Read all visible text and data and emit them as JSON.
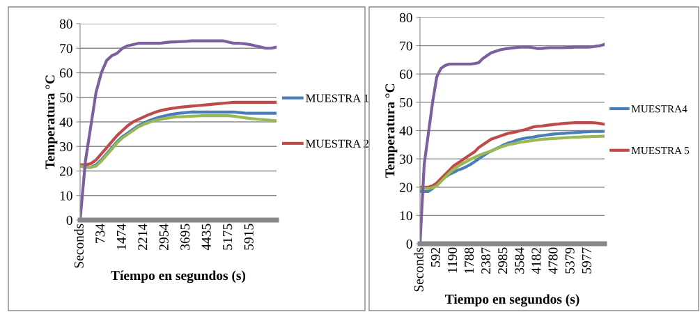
{
  "chart_data": [
    {
      "type": "line",
      "xlabel": "Tíempo en segundos (s)",
      "ylabel": "Temperatura °C",
      "ylim": [
        0,
        80
      ],
      "yticks": [
        0,
        10,
        20,
        30,
        40,
        50,
        60,
        70,
        80
      ],
      "grid": "y",
      "legend": "right",
      "categories": [
        "Seconds",
        null,
        null,
        null,
        "734",
        null,
        null,
        null,
        "1474",
        null,
        null,
        null,
        "2214",
        null,
        null,
        null,
        "2954",
        null,
        null,
        null,
        "3695",
        null,
        null,
        null,
        "4435",
        null,
        null,
        null,
        "5175",
        null,
        null,
        null,
        "5915",
        null,
        null,
        null,
        null,
        null
      ],
      "series": [
        {
          "name": "MUESTRA 1",
          "color": "#4a7ebb",
          "values": [
            22,
            21.5,
            21.5,
            22.5,
            24.5,
            27,
            29.5,
            32,
            34,
            35.5,
            37,
            38.5,
            39.5,
            40.5,
            41.3,
            42,
            42.5,
            43,
            43.3,
            43.6,
            43.8,
            44,
            44,
            44,
            44,
            44,
            44,
            44,
            44,
            44,
            43.8,
            43.6,
            43.5,
            43.5,
            43.5,
            43.5,
            43.5,
            43.5
          ]
        },
        {
          "name": "MUESTRA 2",
          "color": "#be4b48",
          "values": [
            22.5,
            22.5,
            23,
            24.5,
            27,
            29.5,
            32,
            34.5,
            36.5,
            38.5,
            40,
            41,
            42,
            43,
            43.8,
            44.5,
            45,
            45.4,
            45.7,
            46,
            46.2,
            46.4,
            46.6,
            46.8,
            47,
            47.2,
            47.4,
            47.6,
            47.8,
            48,
            48,
            48,
            48,
            48,
            48,
            48,
            48,
            48
          ]
        },
        {
          "color": "#98b954",
          "values": [
            22,
            21.5,
            21.5,
            22,
            24,
            26.5,
            29,
            31.5,
            33.5,
            35,
            36.5,
            38,
            39,
            39.8,
            40.5,
            41,
            41.4,
            41.7,
            42,
            42.1,
            42.2,
            42.3,
            42.4,
            42.5,
            42.5,
            42.5,
            42.5,
            42.5,
            42.5,
            42.3,
            42,
            41.7,
            41.4,
            41.2,
            41,
            40.8,
            40.6,
            40.5
          ]
        },
        {
          "color": "#7d5fa0",
          "values": [
            0,
            24,
            38,
            52,
            60,
            65,
            67,
            68,
            70,
            71,
            71.5,
            72,
            72,
            72,
            72,
            72,
            72.3,
            72.5,
            72.6,
            72.7,
            72.8,
            73,
            73,
            73,
            73,
            73,
            73,
            73,
            72.5,
            72,
            72,
            71.8,
            71.5,
            71,
            70.5,
            70,
            70,
            70.5
          ]
        }
      ]
    },
    {
      "type": "line",
      "xlabel": "Tiempo en segundos (s)",
      "ylabel": "Temperatura °C",
      "ylim": [
        0,
        80
      ],
      "yticks": [
        0,
        10,
        20,
        30,
        40,
        50,
        60,
        70,
        80
      ],
      "grid": "y",
      "legend": "right",
      "categories": [
        "Seconds",
        null,
        null,
        null,
        "592",
        null,
        null,
        null,
        "1190",
        null,
        null,
        null,
        "1788",
        null,
        null,
        null,
        "2387",
        null,
        null,
        null,
        "2985",
        null,
        null,
        null,
        "3584",
        null,
        null,
        null,
        "4182",
        null,
        null,
        null,
        "4780",
        null,
        null,
        null,
        "5379",
        null,
        null,
        null,
        "5977",
        null,
        null,
        null,
        null
      ],
      "series": [
        {
          "name": "MUESTRA4",
          "color": "#4a7ebb",
          "values": [
            18.5,
            18.5,
            18.5,
            19.5,
            21,
            22.5,
            23.5,
            24.5,
            25.2,
            26,
            26.5,
            27.2,
            28,
            29,
            30,
            31,
            32,
            32.8,
            33.5,
            34.2,
            35,
            35.6,
            36,
            36.6,
            37,
            37.3,
            37.5,
            37.7,
            38,
            38.2,
            38.4,
            38.6,
            38.8,
            38.9,
            39,
            39.1,
            39.2,
            39.3,
            39.4,
            39.5,
            39.6,
            39.7,
            39.7,
            39.7,
            39.7
          ]
        },
        {
          "name": "MUESTRA 5",
          "color": "#be4b48",
          "values": [
            20,
            20,
            20,
            20.5,
            21.5,
            23,
            24.5,
            26,
            27.5,
            28.5,
            29.5,
            30.5,
            31.5,
            32.5,
            34,
            35,
            36,
            37,
            37.5,
            38,
            38.5,
            39,
            39.3,
            39.6,
            40,
            40.3,
            40.8,
            41.3,
            41.5,
            41.6,
            41.8,
            42,
            42.2,
            42.3,
            42.5,
            42.6,
            42.7,
            42.8,
            42.8,
            42.8,
            42.8,
            42.8,
            42.7,
            42.5,
            42.2
          ]
        },
        {
          "color": "#98b954",
          "values": [
            19.5,
            19.5,
            19.5,
            19.8,
            20.5,
            22,
            23.5,
            25,
            26.3,
            27.3,
            28.2,
            29,
            29.8,
            30.5,
            31.2,
            31.8,
            32.3,
            32.8,
            33.4,
            34,
            34.5,
            35,
            35.3,
            35.6,
            35.9,
            36.1,
            36.3,
            36.5,
            36.7,
            36.9,
            37,
            37.1,
            37.2,
            37.3,
            37.4,
            37.5,
            37.6,
            37.7,
            37.7,
            37.8,
            37.8,
            37.9,
            37.9,
            38,
            38
          ]
        },
        {
          "color": "#7d5fa0",
          "values": [
            0,
            28,
            39,
            50,
            59,
            62,
            63,
            63.5,
            63.5,
            63.5,
            63.5,
            63.5,
            63.5,
            63.7,
            64,
            65.5,
            66.5,
            67.5,
            68,
            68.5,
            68.8,
            69,
            69.2,
            69.4,
            69.5,
            69.5,
            69.5,
            69.3,
            69,
            69,
            69.2,
            69.3,
            69.3,
            69.3,
            69.3,
            69.4,
            69.4,
            69.5,
            69.5,
            69.5,
            69.5,
            69.6,
            69.8,
            70,
            70.5
          ]
        }
      ]
    }
  ]
}
